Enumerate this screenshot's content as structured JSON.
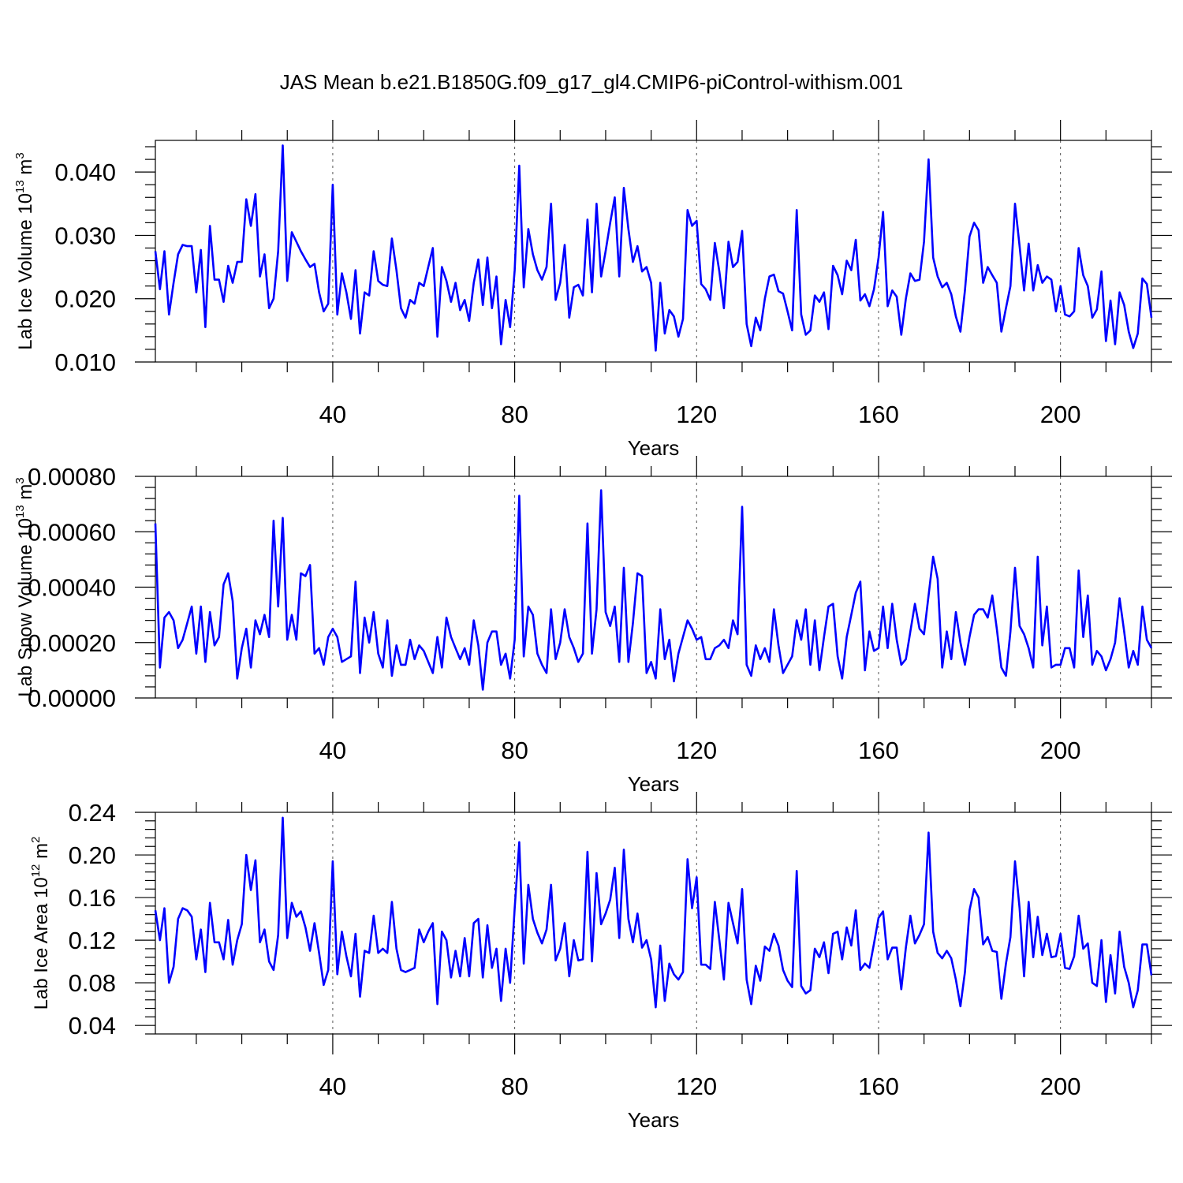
{
  "title": "JAS Mean b.e21.B1850G.f09_g17_gl4.CMIP6-piControl-withism.001",
  "colors": {
    "series": "#0000ff",
    "axes": "#000000",
    "grid": "#555555"
  },
  "chart_data": [
    {
      "type": "line",
      "xlabel": "Years",
      "ylabel": "Lab Ice Volume 10",
      "ylabel_exponent": "13",
      "ylabel_unit": " m",
      "ylabel_unit_exponent": "3",
      "xlim": [
        1,
        220
      ],
      "ylim": [
        0.01,
        0.045
      ],
      "xticks": [
        40,
        80,
        120,
        160,
        200
      ],
      "xtick_labels": [
        "40",
        "80",
        "120",
        "160",
        "200"
      ],
      "yticks": [
        0.01,
        0.02,
        0.03,
        0.04
      ],
      "ytick_labels": [
        "0.010",
        "0.020",
        "0.030",
        "0.040"
      ],
      "grid": "dashed vertical at x ticks",
      "series": [
        {
          "name": "Lab Ice Volume",
          "x_start": 1,
          "x_step": 1,
          "values": [
            0.0275,
            0.0215,
            0.0275,
            0.0175,
            0.0225,
            0.027,
            0.0285,
            0.0283,
            0.0283,
            0.021,
            0.0277,
            0.0155,
            0.0315,
            0.023,
            0.023,
            0.0195,
            0.0252,
            0.0225,
            0.0258,
            0.0258,
            0.0357,
            0.0315,
            0.0365,
            0.0235,
            0.027,
            0.0185,
            0.02,
            0.0275,
            0.0442,
            0.0228,
            0.0305,
            0.029,
            0.0275,
            0.0262,
            0.025,
            0.0255,
            0.021,
            0.018,
            0.0192,
            0.038,
            0.0175,
            0.024,
            0.021,
            0.0168,
            0.0245,
            0.0145,
            0.021,
            0.0205,
            0.0275,
            0.0228,
            0.0222,
            0.022,
            0.0295,
            0.0245,
            0.0185,
            0.017,
            0.0198,
            0.0192,
            0.0225,
            0.022,
            0.025,
            0.028,
            0.014,
            0.025,
            0.0228,
            0.0195,
            0.0225,
            0.0182,
            0.0198,
            0.0165,
            0.0225,
            0.0262,
            0.019,
            0.0265,
            0.0185,
            0.0235,
            0.0128,
            0.0198,
            0.0155,
            0.0245,
            0.041,
            0.0218,
            0.031,
            0.027,
            0.0245,
            0.023,
            0.025,
            0.035,
            0.0198,
            0.0225,
            0.0285,
            0.017,
            0.0218,
            0.0222,
            0.0205,
            0.0325,
            0.021,
            0.035,
            0.0235,
            0.0275,
            0.032,
            0.036,
            0.0235,
            0.0375,
            0.031,
            0.0258,
            0.0283,
            0.0243,
            0.025,
            0.0225,
            0.0118,
            0.0225,
            0.0145,
            0.0182,
            0.0172,
            0.014,
            0.0168,
            0.034,
            0.0315,
            0.0323,
            0.0223,
            0.0215,
            0.0198,
            0.0288,
            0.0243,
            0.0185,
            0.029,
            0.025,
            0.0258,
            0.0307,
            0.016,
            0.0125,
            0.017,
            0.015,
            0.02,
            0.0235,
            0.0238,
            0.0212,
            0.0208,
            0.018,
            0.015,
            0.034,
            0.0175,
            0.0143,
            0.015,
            0.0205,
            0.0195,
            0.021,
            0.0152,
            0.0252,
            0.0237,
            0.0207,
            0.026,
            0.0245,
            0.0293,
            0.0197,
            0.0207,
            0.0188,
            0.0215,
            0.0265,
            0.0337,
            0.0188,
            0.0213,
            0.0203,
            0.0143,
            0.02,
            0.024,
            0.0228,
            0.023,
            0.029,
            0.042,
            0.0265,
            0.0235,
            0.0218,
            0.0225,
            0.0207,
            0.0172,
            0.0148,
            0.0213,
            0.0298,
            0.032,
            0.0308,
            0.0225,
            0.025,
            0.0237,
            0.0225,
            0.0148,
            0.0185,
            0.022,
            0.035,
            0.0283,
            0.0213,
            0.0287,
            0.0213,
            0.0253,
            0.0225,
            0.0235,
            0.023,
            0.018,
            0.022,
            0.0175,
            0.0172,
            0.018,
            0.028,
            0.0237,
            0.022,
            0.017,
            0.0183,
            0.0243,
            0.0133,
            0.0197,
            0.0128,
            0.021,
            0.019,
            0.0148,
            0.0122,
            0.0145,
            0.0232,
            0.0223,
            0.017
          ]
        }
      ]
    },
    {
      "type": "line",
      "xlabel": "Years",
      "ylabel": "Lab Snow Volume 10",
      "ylabel_exponent": "13",
      "ylabel_unit": " m",
      "ylabel_unit_exponent": "3",
      "xlim": [
        1,
        220
      ],
      "ylim": [
        0.0,
        0.0008
      ],
      "xticks": [
        40,
        80,
        120,
        160,
        200
      ],
      "xtick_labels": [
        "40",
        "80",
        "120",
        "160",
        "200"
      ],
      "yticks": [
        0.0,
        0.0002,
        0.0004,
        0.0006,
        0.0008
      ],
      "ytick_labels": [
        "0.00000",
        "0.00020",
        "0.00040",
        "0.00060",
        "0.00080"
      ],
      "grid": "dashed vertical at x ticks",
      "series": [
        {
          "name": "Lab Snow Volume",
          "x_start": 1,
          "x_step": 1,
          "values": [
            0.00063,
            0.00011,
            0.00029,
            0.00031,
            0.00028,
            0.00018,
            0.00021,
            0.00027,
            0.00033,
            0.00016,
            0.00033,
            0.00013,
            0.00031,
            0.00019,
            0.00022,
            0.00041,
            0.00045,
            0.00035,
            7e-05,
            0.00018,
            0.00025,
            0.00011,
            0.00028,
            0.00023,
            0.0003,
            0.00022,
            0.00064,
            0.00033,
            0.00065,
            0.00021,
            0.0003,
            0.00021,
            0.00045,
            0.00044,
            0.00048,
            0.00016,
            0.00018,
            0.00012,
            0.00022,
            0.00025,
            0.00022,
            0.00013,
            0.00014,
            0.00015,
            0.00042,
            9e-05,
            0.00029,
            0.0002,
            0.00031,
            0.00016,
            0.00011,
            0.00028,
            8e-05,
            0.00019,
            0.00012,
            0.00012,
            0.00021,
            0.00014,
            0.00019,
            0.00017,
            0.00013,
            9e-05,
            0.00022,
            0.00011,
            0.00029,
            0.00022,
            0.00018,
            0.00014,
            0.00018,
            0.00012,
            0.00028,
            0.00019,
            3e-05,
            0.0002,
            0.00024,
            0.00024,
            0.00012,
            0.00016,
            7e-05,
            0.00021,
            0.00073,
            0.00015,
            0.00033,
            0.0003,
            0.00016,
            0.00012,
            9e-05,
            0.00032,
            0.00014,
            0.0002,
            0.00032,
            0.00022,
            0.00018,
            0.00013,
            0.00016,
            0.00063,
            0.00016,
            0.00032,
            0.00075,
            0.00031,
            0.00026,
            0.00033,
            0.00013,
            0.00047,
            0.00013,
            0.00027,
            0.00045,
            0.00044,
            9e-05,
            0.00013,
            7e-05,
            0.00032,
            0.00014,
            0.00021,
            6e-05,
            0.00016,
            0.00022,
            0.00028,
            0.00025,
            0.00021,
            0.00022,
            0.00014,
            0.00014,
            0.00018,
            0.00019,
            0.00021,
            0.00018,
            0.00028,
            0.00023,
            0.00069,
            0.00012,
            8e-05,
            0.00019,
            0.00014,
            0.00018,
            0.00013,
            0.00032,
            0.00019,
            9e-05,
            0.00012,
            0.00015,
            0.00028,
            0.00021,
            0.00032,
            0.00012,
            0.00028,
            0.0001,
            0.00022,
            0.00033,
            0.00034,
            0.00015,
            7e-05,
            0.00022,
            0.0003,
            0.00038,
            0.00042,
            0.0001,
            0.00024,
            0.00017,
            0.00018,
            0.00033,
            0.00018,
            0.00034,
            0.00021,
            0.00012,
            0.00014,
            0.00024,
            0.00034,
            0.00025,
            0.00023,
            0.00037,
            0.00051,
            0.00043,
            0.00011,
            0.00024,
            0.00014,
            0.00031,
            0.0002,
            0.00012,
            0.00022,
            0.0003,
            0.00032,
            0.00032,
            0.00029,
            0.00037,
            0.00025,
            0.00011,
            8e-05,
            0.00024,
            0.00047,
            0.00026,
            0.00023,
            0.00018,
            0.00011,
            0.00051,
            0.00019,
            0.00033,
            0.00011,
            0.00012,
            0.00012,
            0.00018,
            0.00018,
            0.00011,
            0.00046,
            0.00022,
            0.00037,
            0.00012,
            0.00017,
            0.00015,
            0.0001,
            0.00014,
            0.0002,
            0.00036,
            0.00024,
            0.00011,
            0.00017,
            0.00012,
            0.00033,
            0.00021,
            0.00018
          ]
        }
      ]
    },
    {
      "type": "line",
      "xlabel": "Years",
      "ylabel": "Lab Ice Area 10",
      "ylabel_exponent": "12",
      "ylabel_unit": " m",
      "ylabel_unit_exponent": "2",
      "xlim": [
        1,
        220
      ],
      "ylim": [
        0.032,
        0.24
      ],
      "xticks": [
        40,
        80,
        120,
        160,
        200
      ],
      "xtick_labels": [
        "40",
        "80",
        "120",
        "160",
        "200"
      ],
      "yticks": [
        0.04,
        0.08,
        0.12,
        0.16,
        0.2,
        0.24
      ],
      "ytick_labels": [
        "0.04",
        "0.08",
        "0.12",
        "0.16",
        "0.20",
        "0.24"
      ],
      "grid": "dashed vertical at x ticks",
      "series": [
        {
          "name": "Lab Ice Area",
          "x_start": 1,
          "x_step": 1,
          "values": [
            0.148,
            0.12,
            0.15,
            0.08,
            0.095,
            0.14,
            0.15,
            0.148,
            0.142,
            0.102,
            0.13,
            0.09,
            0.155,
            0.118,
            0.118,
            0.102,
            0.139,
            0.097,
            0.12,
            0.135,
            0.2,
            0.167,
            0.195,
            0.118,
            0.13,
            0.1,
            0.092,
            0.125,
            0.235,
            0.122,
            0.155,
            0.142,
            0.147,
            0.132,
            0.11,
            0.136,
            0.108,
            0.078,
            0.092,
            0.194,
            0.088,
            0.128,
            0.105,
            0.086,
            0.126,
            0.067,
            0.11,
            0.108,
            0.143,
            0.108,
            0.112,
            0.108,
            0.156,
            0.112,
            0.092,
            0.09,
            0.092,
            0.094,
            0.13,
            0.118,
            0.128,
            0.136,
            0.06,
            0.128,
            0.12,
            0.085,
            0.11,
            0.086,
            0.122,
            0.086,
            0.136,
            0.14,
            0.085,
            0.134,
            0.094,
            0.112,
            0.063,
            0.112,
            0.08,
            0.15,
            0.212,
            0.098,
            0.172,
            0.14,
            0.127,
            0.117,
            0.13,
            0.172,
            0.101,
            0.112,
            0.136,
            0.086,
            0.12,
            0.101,
            0.102,
            0.203,
            0.1,
            0.183,
            0.135,
            0.145,
            0.158,
            0.188,
            0.122,
            0.205,
            0.14,
            0.118,
            0.145,
            0.113,
            0.12,
            0.102,
            0.057,
            0.115,
            0.063,
            0.098,
            0.088,
            0.083,
            0.09,
            0.196,
            0.15,
            0.179,
            0.097,
            0.097,
            0.093,
            0.156,
            0.12,
            0.083,
            0.155,
            0.136,
            0.117,
            0.168,
            0.083,
            0.06,
            0.096,
            0.082,
            0.114,
            0.11,
            0.126,
            0.115,
            0.092,
            0.082,
            0.076,
            0.185,
            0.077,
            0.07,
            0.073,
            0.112,
            0.104,
            0.118,
            0.089,
            0.126,
            0.128,
            0.102,
            0.132,
            0.115,
            0.148,
            0.092,
            0.098,
            0.094,
            0.117,
            0.141,
            0.147,
            0.102,
            0.113,
            0.113,
            0.074,
            0.113,
            0.143,
            0.117,
            0.125,
            0.135,
            0.221,
            0.128,
            0.108,
            0.103,
            0.11,
            0.103,
            0.083,
            0.058,
            0.09,
            0.148,
            0.168,
            0.16,
            0.116,
            0.123,
            0.11,
            0.109,
            0.065,
            0.098,
            0.123,
            0.194,
            0.15,
            0.086,
            0.156,
            0.104,
            0.142,
            0.106,
            0.126,
            0.104,
            0.105,
            0.126,
            0.094,
            0.093,
            0.105,
            0.143,
            0.112,
            0.117,
            0.08,
            0.077,
            0.12,
            0.062,
            0.106,
            0.07,
            0.128,
            0.095,
            0.08,
            0.057,
            0.073,
            0.116,
            0.116,
            0.087
          ]
        }
      ]
    }
  ]
}
